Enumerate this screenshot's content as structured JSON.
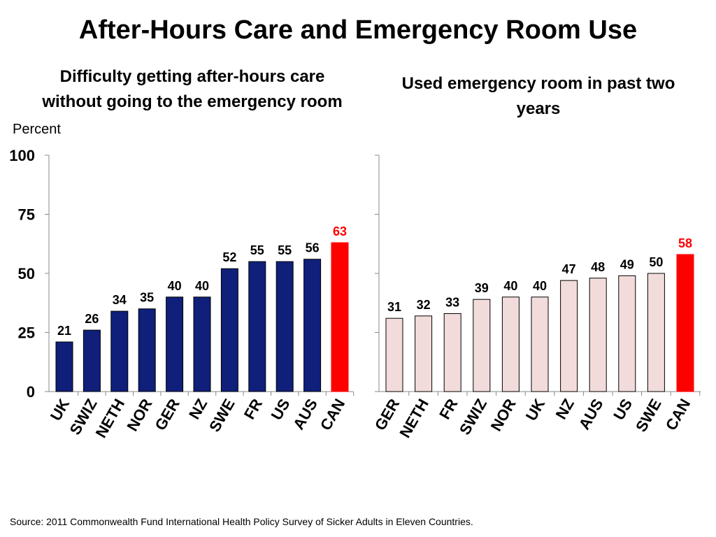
{
  "title": "After-Hours Care and Emergency Room Use",
  "unit_label": "Percent",
  "source": "Source: 2011 Commonwealth Fund International Health Policy Survey of Sicker Adults in Eleven Countries.",
  "colors": {
    "left_bar": "#0f1f7a",
    "right_bar": "#f2dcdb",
    "highlight": "#ff0000",
    "text": "#000000"
  },
  "chart_data": [
    {
      "type": "bar",
      "title": "Difficulty getting after-hours care without going to the emergency room",
      "title_lines": [
        "Difficulty getting after-hours care",
        "without going to the emergency room"
      ],
      "ylabel": "Percent",
      "ylim": [
        0,
        100
      ],
      "yticks": [
        0,
        25,
        50,
        75,
        100
      ],
      "categories": [
        "UK",
        "SWIZ",
        "NETH",
        "NOR",
        "GER",
        "NZ",
        "SWE",
        "FR",
        "US",
        "AUS",
        "CAN"
      ],
      "values": [
        21,
        26,
        34,
        35,
        40,
        40,
        52,
        55,
        55,
        56,
        63
      ],
      "highlight": "CAN"
    },
    {
      "type": "bar",
      "title": "Used emergency room in past two years",
      "title_lines": [
        "Used emergency room in past two",
        "years"
      ],
      "ylim": [
        0,
        100
      ],
      "categories": [
        "GER",
        "NETH",
        "FR",
        "SWIZ",
        "NOR",
        "UK",
        "NZ",
        "AUS",
        "US",
        "SWE",
        "CAN"
      ],
      "values": [
        31,
        32,
        33,
        39,
        40,
        40,
        47,
        48,
        49,
        50,
        58
      ],
      "highlight": "CAN"
    }
  ]
}
